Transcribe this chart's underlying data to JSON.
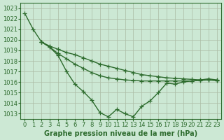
{
  "xlabel": "Graphe pression niveau de la mer (hPa)",
  "line1_x": [
    0,
    1,
    2,
    3,
    4,
    5,
    6,
    7,
    8,
    9,
    10,
    11,
    12,
    13,
    14,
    15,
    16,
    17,
    18,
    19,
    20,
    21,
    22,
    23
  ],
  "line1_y": [
    1022.5,
    1021.0,
    1019.8,
    1019.4,
    1019.1,
    1018.8,
    1018.6,
    1018.3,
    1018.0,
    1017.7,
    1017.5,
    1017.3,
    1017.1,
    1016.9,
    1016.7,
    1016.6,
    1016.5,
    1016.4,
    1016.35,
    1016.3,
    1016.25,
    1016.2,
    1016.2,
    1016.15
  ],
  "line2_x": [
    2,
    3,
    4,
    5,
    6,
    7,
    8,
    9,
    10,
    11,
    12,
    13,
    14,
    15,
    16,
    17,
    18,
    19,
    20,
    21,
    22,
    23
  ],
  "line2_y": [
    1019.8,
    1019.3,
    1018.7,
    1018.2,
    1017.7,
    1017.3,
    1016.9,
    1016.6,
    1016.4,
    1016.3,
    1016.2,
    1016.15,
    1016.1,
    1016.1,
    1016.1,
    1016.1,
    1016.1,
    1016.1,
    1016.1,
    1016.15,
    1016.2,
    1016.15
  ],
  "line3_x": [
    2,
    3,
    4,
    5,
    6,
    7,
    8,
    9,
    10,
    11,
    12,
    13,
    14,
    15,
    16,
    17,
    18,
    19,
    20,
    21,
    22,
    23
  ],
  "line3_y": [
    1019.8,
    1019.3,
    1018.5,
    1017.0,
    1015.8,
    1015.1,
    1014.3,
    1013.1,
    1012.7,
    1013.4,
    1013.0,
    1012.7,
    1013.7,
    1014.2,
    1015.0,
    1015.9,
    1015.8,
    1016.0,
    1016.1,
    1016.2,
    1016.3,
    1016.2
  ],
  "ylim": [
    1012.5,
    1023.5
  ],
  "yticks": [
    1013,
    1014,
    1015,
    1016,
    1017,
    1018,
    1019,
    1020,
    1021,
    1022,
    1023
  ],
  "xlim": [
    -0.5,
    23.5
  ],
  "background_color": "#cce8d4",
  "grid_color": "#aabba4",
  "line_color": "#2d6b2d",
  "marker": "+",
  "markersize": 4,
  "linewidth": 1.0,
  "label_fontsize": 7,
  "tick_fontsize": 6
}
